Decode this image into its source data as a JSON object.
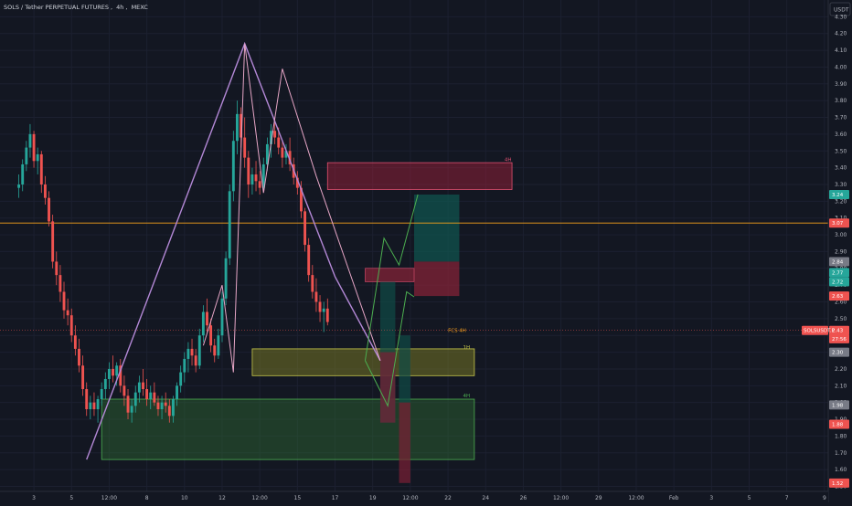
{
  "header": {
    "symbol": "SOLS / Tether PERPETUAL FUTURES",
    "interval": "4h",
    "exchange": "MEXC"
  },
  "currency_button": "USDT",
  "colors": {
    "background": "#131722",
    "up": "#26a69a",
    "down": "#ef5350",
    "orange_line": "#f7a21b",
    "purple": "#b388d6",
    "pink": "#e6a6c6",
    "green_arrow": "#4caf50",
    "red_zone": "#a8223c",
    "yellow_zone": "#8a8a25",
    "green_zone": "#2e6b32",
    "teal_zone": "#0f5750"
  },
  "chart_data": {
    "type": "candlestick",
    "ylim": [
      1.47,
      4.4
    ],
    "y_ticks": [
      "4.30",
      "4.20",
      "4.10",
      "4.00",
      "3.90",
      "3.80",
      "3.70",
      "3.60",
      "3.50",
      "3.40",
      "3.30",
      "3.20",
      "3.10",
      "3.00",
      "2.90",
      "2.80",
      "2.70",
      "2.60",
      "2.50",
      "2.40",
      "2.30",
      "2.20",
      "2.10",
      "2.00",
      "1.90",
      "1.80",
      "1.70",
      "1.60",
      "1.50"
    ],
    "y_tick_values": [
      4.3,
      4.2,
      4.1,
      4.0,
      3.9,
      3.8,
      3.7,
      3.6,
      3.5,
      3.4,
      3.3,
      3.2,
      3.1,
      3.0,
      2.9,
      2.8,
      2.7,
      2.6,
      2.5,
      2.4,
      2.3,
      2.2,
      2.1,
      2.0,
      1.9,
      1.8,
      1.7,
      1.6,
      1.5
    ],
    "x_ticks": [
      "3",
      "5",
      "12:00",
      "8",
      "10",
      "12",
      "12:00",
      "15",
      "17",
      "19",
      "12:00",
      "22",
      "24",
      "26",
      "12:00",
      "29",
      "12:00",
      "Feb",
      "3",
      "5",
      "7",
      "9"
    ],
    "x_tick_index": [
      4,
      14,
      24,
      34,
      44,
      54,
      64,
      74,
      84,
      94,
      104,
      114,
      124,
      134,
      144,
      154,
      164,
      174,
      184,
      194,
      204,
      214
    ],
    "x_range": [
      -5,
      215
    ],
    "candles": [
      [
        3.28,
        3.36,
        3.22,
        3.3
      ],
      [
        3.3,
        3.45,
        3.26,
        3.42
      ],
      [
        3.42,
        3.56,
        3.38,
        3.52
      ],
      [
        3.52,
        3.66,
        3.46,
        3.6
      ],
      [
        3.6,
        3.62,
        3.4,
        3.44
      ],
      [
        3.44,
        3.52,
        3.36,
        3.48
      ],
      [
        3.48,
        3.5,
        3.25,
        3.3
      ],
      [
        3.3,
        3.35,
        3.18,
        3.22
      ],
      [
        3.22,
        3.26,
        3.05,
        3.08
      ],
      [
        3.08,
        3.12,
        2.8,
        2.84
      ],
      [
        2.84,
        2.9,
        2.7,
        2.76
      ],
      [
        2.76,
        2.82,
        2.6,
        2.66
      ],
      [
        2.66,
        2.72,
        2.5,
        2.55
      ],
      [
        2.55,
        2.62,
        2.46,
        2.52
      ],
      [
        2.52,
        2.56,
        2.36,
        2.4
      ],
      [
        2.4,
        2.46,
        2.28,
        2.32
      ],
      [
        2.32,
        2.38,
        2.18,
        2.22
      ],
      [
        2.22,
        2.28,
        2.04,
        2.08
      ],
      [
        2.08,
        2.12,
        1.92,
        1.96
      ],
      [
        1.96,
        2.04,
        1.9,
        2.0
      ],
      [
        2.0,
        2.06,
        1.92,
        1.96
      ],
      [
        1.96,
        2.04,
        1.88,
        2.02
      ],
      [
        2.02,
        2.12,
        1.98,
        2.08
      ],
      [
        2.08,
        2.18,
        2.02,
        2.14
      ],
      [
        2.14,
        2.24,
        2.08,
        2.2
      ],
      [
        2.2,
        2.28,
        2.12,
        2.16
      ],
      [
        2.16,
        2.24,
        2.1,
        2.22
      ],
      [
        2.22,
        2.26,
        2.06,
        2.1
      ],
      [
        2.1,
        2.16,
        1.98,
        2.04
      ],
      [
        2.04,
        2.08,
        1.9,
        1.94
      ],
      [
        1.94,
        2.02,
        1.88,
        1.98
      ],
      [
        1.98,
        2.1,
        1.94,
        2.06
      ],
      [
        2.06,
        2.16,
        2.0,
        2.12
      ],
      [
        2.12,
        2.2,
        2.04,
        2.08
      ],
      [
        2.08,
        2.14,
        1.98,
        2.02
      ],
      [
        2.02,
        2.1,
        1.96,
        2.06
      ],
      [
        2.06,
        2.12,
        1.98,
        2.0
      ],
      [
        2.0,
        2.04,
        1.92,
        1.96
      ],
      [
        1.96,
        2.04,
        1.9,
        2.0
      ],
      [
        2.0,
        2.06,
        1.94,
        1.98
      ],
      [
        1.98,
        2.02,
        1.88,
        1.92
      ],
      [
        1.92,
        2.04,
        1.88,
        2.02
      ],
      [
        2.02,
        2.12,
        1.98,
        2.1
      ],
      [
        2.1,
        2.22,
        2.06,
        2.18
      ],
      [
        2.18,
        2.3,
        2.12,
        2.26
      ],
      [
        2.26,
        2.36,
        2.18,
        2.32
      ],
      [
        2.32,
        2.38,
        2.22,
        2.28
      ],
      [
        2.28,
        2.32,
        2.18,
        2.22
      ],
      [
        2.22,
        2.44,
        2.2,
        2.4
      ],
      [
        2.4,
        2.58,
        2.36,
        2.54
      ],
      [
        2.54,
        2.62,
        2.42,
        2.46
      ],
      [
        2.46,
        2.5,
        2.3,
        2.34
      ],
      [
        2.34,
        2.38,
        2.24,
        2.28
      ],
      [
        2.28,
        2.44,
        2.26,
        2.4
      ],
      [
        2.4,
        2.66,
        2.36,
        2.62
      ],
      [
        2.62,
        2.9,
        2.58,
        2.86
      ],
      [
        2.86,
        3.3,
        2.82,
        3.26
      ],
      [
        3.26,
        3.62,
        3.2,
        3.56
      ],
      [
        3.56,
        3.8,
        3.48,
        3.72
      ],
      [
        3.72,
        3.76,
        3.52,
        3.58
      ],
      [
        3.58,
        3.7,
        3.4,
        3.46
      ],
      [
        3.46,
        3.5,
        3.22,
        3.3
      ],
      [
        3.3,
        3.4,
        3.24,
        3.36
      ],
      [
        3.36,
        3.44,
        3.26,
        3.32
      ],
      [
        3.32,
        3.38,
        3.24,
        3.28
      ],
      [
        3.28,
        3.46,
        3.26,
        3.42
      ],
      [
        3.42,
        3.58,
        3.38,
        3.54
      ],
      [
        3.54,
        3.66,
        3.46,
        3.62
      ],
      [
        3.62,
        3.7,
        3.54,
        3.58
      ],
      [
        3.58,
        3.64,
        3.48,
        3.52
      ],
      [
        3.52,
        3.56,
        3.4,
        3.46
      ],
      [
        3.46,
        3.54,
        3.42,
        3.5
      ],
      [
        3.5,
        3.58,
        3.38,
        3.42
      ],
      [
        3.42,
        3.46,
        3.3,
        3.34
      ],
      [
        3.34,
        3.38,
        3.24,
        3.28
      ],
      [
        3.28,
        3.32,
        3.1,
        3.14
      ],
      [
        3.14,
        3.16,
        2.9,
        2.94
      ],
      [
        2.94,
        2.98,
        2.72,
        2.76
      ],
      [
        2.76,
        2.82,
        2.62,
        2.66
      ],
      [
        2.66,
        2.74,
        2.54,
        2.6
      ],
      [
        2.6,
        2.64,
        2.48,
        2.54
      ],
      [
        2.54,
        2.6,
        2.42,
        2.56
      ],
      [
        2.56,
        2.62,
        2.46,
        2.48
      ]
    ]
  },
  "price_labels": [
    {
      "text": "3.24",
      "price": 3.24,
      "color": "#26a69a"
    },
    {
      "text": "3.07",
      "price": 3.07,
      "color": "#ef5350"
    },
    {
      "text": "2.84",
      "price": 2.84,
      "color": "#787b86"
    },
    {
      "text": "2.77",
      "price": 2.775,
      "color": "#26a69a"
    },
    {
      "text": "2.72",
      "price": 2.72,
      "color": "#26a69a"
    },
    {
      "text": "2.63",
      "price": 2.635,
      "color": "#ef5350"
    },
    {
      "text": "2.43",
      "price": 2.43,
      "color": "#ef5350"
    },
    {
      "text": "27:56",
      "price": 2.38,
      "color": "#ef5350"
    },
    {
      "text": "2.30",
      "price": 2.3,
      "color": "#787b86"
    },
    {
      "text": "1.98",
      "price": 1.985,
      "color": "#787b86"
    },
    {
      "text": "1.88",
      "price": 1.87,
      "color": "#ef5350"
    },
    {
      "text": "1.52",
      "price": 1.52,
      "color": "#ef5350"
    }
  ],
  "symbol_tag": "SOLSUSDT.P",
  "annotations": {
    "red_zone_label": "4H",
    "fcs_label": "FCS 4H",
    "yellow_label": "1H",
    "green_label": "4H"
  }
}
